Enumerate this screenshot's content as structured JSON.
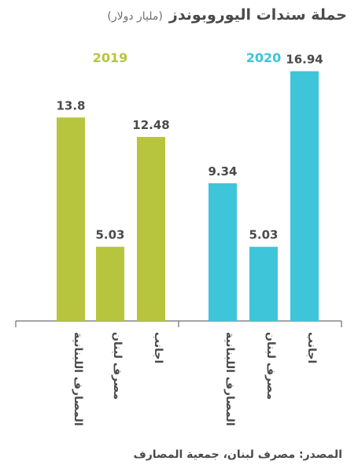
{
  "chart_data": {
    "type": "bar",
    "title": "حملة سندات اليوروبوندز",
    "subtitle": "(مليار دولار)",
    "source": "المصدر: مصرف لبنان، جمعية المصارف",
    "ylim": [
      0,
      17.5
    ],
    "groups": [
      {
        "name": "2019",
        "color": "#b7c43d",
        "categories": [
          "المصارف اللبنانية",
          "مصرف لبنان",
          "اجانب"
        ],
        "values": [
          13.8,
          5.03,
          12.48
        ],
        "labels": [
          "13.8",
          "5.03",
          "12.48"
        ]
      },
      {
        "name": "2020",
        "color": "#3ec5d9",
        "categories": [
          "المصارف اللبنانية",
          "مصرف لبنان",
          "اجانب"
        ],
        "values": [
          9.34,
          5.03,
          16.94
        ],
        "labels": [
          "9.34",
          "5.03",
          "16.94"
        ]
      }
    ],
    "grid": false,
    "legend": "none"
  }
}
